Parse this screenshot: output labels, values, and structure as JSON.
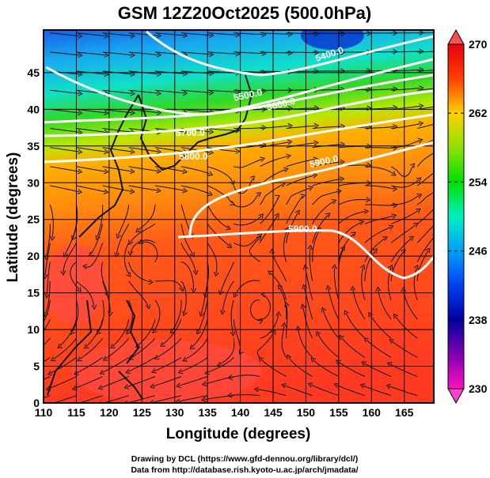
{
  "chart_data": {
    "type": "heatmap",
    "title": "GSM 12Z20Oct2025 (500.0hPa)",
    "xlabel": "Longitude (degrees)",
    "ylabel": "Latitude  (degrees)",
    "xlim": [
      110,
      169.5
    ],
    "ylim": [
      0,
      50.8
    ],
    "xticks": [
      "110",
      "115",
      "120",
      "125",
      "130",
      "135",
      "140",
      "145",
      "150",
      "155",
      "160",
      "165"
    ],
    "yticks": [
      "0",
      "5",
      "10",
      "15",
      "20",
      "25",
      "30",
      "35",
      "40",
      "45"
    ],
    "grid": true,
    "shading_variable": "temperature (K)",
    "colorbar": {
      "range": [
        230,
        270
      ],
      "ticks": [
        "270",
        "262",
        "254",
        "246",
        "238",
        "230"
      ],
      "placement": "right"
    },
    "contour_variable": "geopotential height (m)",
    "contour_labels": [
      "5400.0",
      "5500.0",
      "5600.0",
      "5700.0",
      "5800.0",
      "5900.0",
      "5900.0"
    ],
    "overlay": "streamlines"
  },
  "footer": {
    "line1": "Drawing by DCL (https://www.gfd-dennou.org/library/dcl/)",
    "line2": "Data from http://database.rish.kyoto-u.ac.jp/arch/jmadata/"
  }
}
